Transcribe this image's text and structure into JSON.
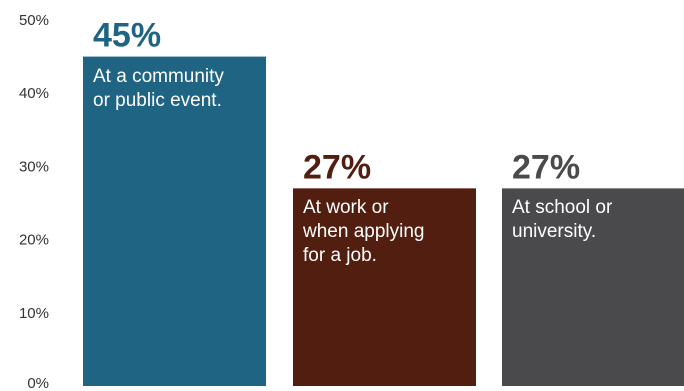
{
  "chart_data": {
    "type": "bar",
    "title": "",
    "xlabel": "",
    "ylabel": "",
    "ylim": [
      0,
      50
    ],
    "yticks": [
      "0%",
      "10%",
      "20%",
      "30%",
      "40%",
      "50%"
    ],
    "categories": [
      "At a community\nor public event.",
      "At work or\nwhen applying\nfor a job.",
      "At school or\nuniversity."
    ],
    "values": [
      45,
      27,
      27
    ],
    "value_labels": [
      "45%",
      "27%",
      "27%"
    ],
    "colors": [
      "#1f6482",
      "#521e10",
      "#4a4a4c"
    ],
    "label_colors": [
      "#1f6482",
      "#521e10",
      "#4a4a4c"
    ],
    "grid": false,
    "legend": "none"
  }
}
